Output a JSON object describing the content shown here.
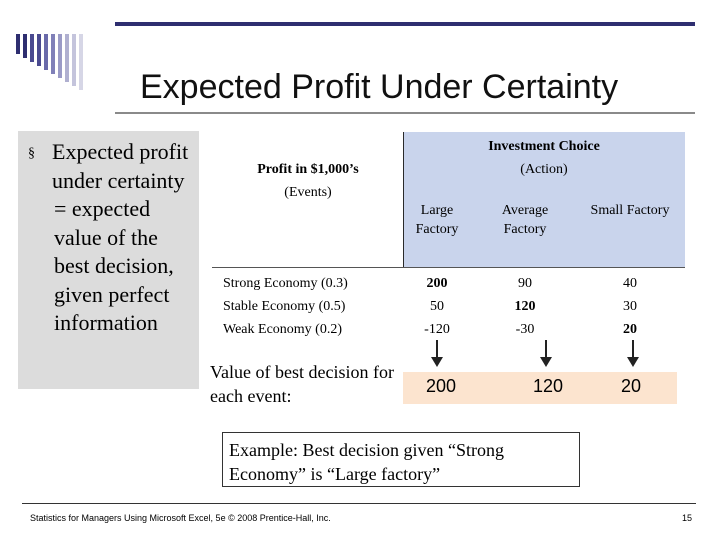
{
  "slide": {
    "title": "Expected Profit Under Certainty",
    "bullet_marker": "§",
    "bullet_line1": "Expected profit under certainty",
    "bullet_line2": "= expected value of the best decision, given perfect information",
    "table": {
      "corner_title": "Profit in $1,000’s",
      "corner_sub": "(Events)",
      "group_title": "Investment Choice",
      "group_sub": "(Action)",
      "columns": [
        "Large Factory",
        "Average Factory",
        "Small Factory"
      ],
      "rows": [
        {
          "label": "Strong Economy (0.3)",
          "values": [
            "200",
            "90",
            "40"
          ]
        },
        {
          "label": "Stable Economy (0.5)",
          "values": [
            "50",
            "120",
            "30"
          ]
        },
        {
          "label": "Weak Economy (0.2)",
          "values": [
            "-120",
            "-30",
            "20"
          ]
        }
      ],
      "best_label": "Value of best decision for each event:",
      "best_values": [
        "200",
        "120",
        "20"
      ]
    },
    "example_text": "Example: Best decision given “Strong Economy” is “Large factory”",
    "footer": "Statistics for Managers Using Microsoft Excel, 5e © 2008 Prentice-Hall, Inc.",
    "page_number": "15",
    "colors": {
      "header_fill": "#c9d4ec",
      "best_fill": "#fce4cf",
      "left_panel_fill": "#dcdcdc",
      "accent_bar": "#2e2e70"
    }
  }
}
